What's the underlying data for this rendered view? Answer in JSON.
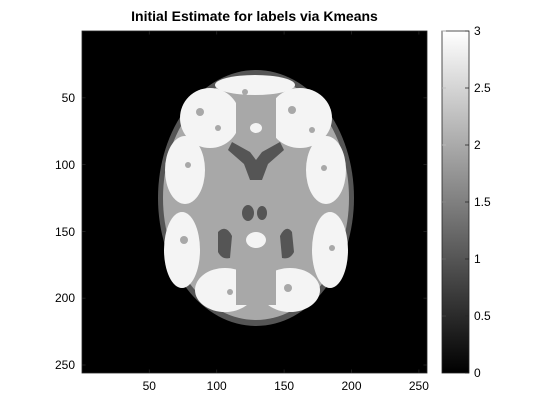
{
  "figure": {
    "title": "Initial Estimate for labels via Kmeans"
  },
  "image_axes": {
    "x_ticks": [
      50,
      100,
      150,
      200,
      250
    ],
    "y_ticks": [
      50,
      100,
      150,
      200,
      250
    ],
    "x_range": [
      0.5,
      256.5
    ],
    "y_range": [
      0.5,
      256.5
    ],
    "background_color": "#000000"
  },
  "colorbar": {
    "ticks": [
      "3",
      "2.5",
      "2",
      "1.5",
      "1",
      "0.5",
      "0"
    ],
    "tick_values": [
      3,
      2.5,
      2,
      1.5,
      1,
      0.5,
      0
    ],
    "range": [
      0,
      3
    ],
    "colormap": "gray"
  },
  "label_colors": {
    "0": "#000000",
    "1": "#555555",
    "2": "#aaaaaa",
    "3": "#ffffff"
  }
}
